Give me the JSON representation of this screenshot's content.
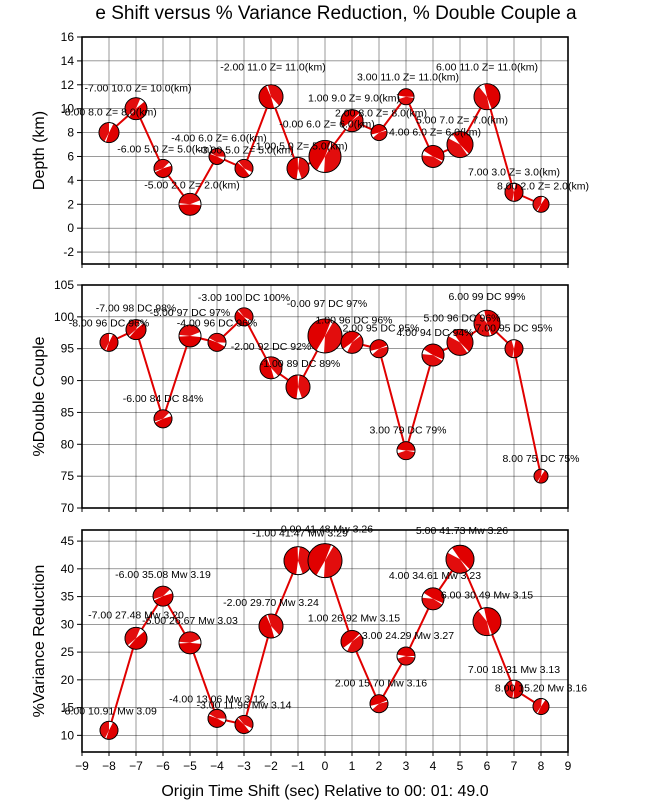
{
  "chart_data": [
    {
      "type": "line",
      "title": "e Shift versus % Variance Reduction, % Double Couple a",
      "xlabel": "",
      "ylabel": "Depth (km)",
      "xlim": [
        -9,
        9
      ],
      "ylim": [
        -3,
        16
      ],
      "yticks": [
        -2,
        0,
        2,
        4,
        6,
        8,
        10,
        12,
        14,
        16
      ],
      "grid": true,
      "x": [
        -8,
        -7,
        -6,
        -5,
        -4,
        -3,
        -2,
        -1,
        0,
        1,
        2,
        3,
        4,
        5,
        6,
        7,
        8
      ],
      "y": [
        8,
        10,
        5,
        2,
        6,
        5,
        11,
        5,
        6,
        9,
        8,
        11,
        6,
        7,
        11,
        3,
        2
      ],
      "labels": [
        "-8.00 8.0 Z= 8.0(km)",
        "-7.00 10.0 Z= 10.0(km)",
        "-6.00 5.0 Z= 5.0(km)",
        "-5.00 2.0 Z= 2.0(km)",
        "-4.00 6.0 Z= 6.0(km)",
        "-3.00 5.0 Z= 5.0(km)",
        "-2.00 11.0 Z= 11.0(km)",
        "-1.00 5.0 Z= 5.0(km)",
        "-0.00 6.0 Z= 6.0(km)",
        "1.00 9.0 Z= 9.0(km)",
        "2.00 8.0 Z= 8.0(km)",
        "3.00 11.0 Z= 11.0(km)",
        "4.00 6.0 Z= 6.0(km)",
        "5.00 7.0 Z= 7.0(km)",
        "6.00 11.0 Z= 11.0(km)",
        "7.00 3.0 Z= 3.0(km)",
        "8.00 2.0 Z= 2.0(km)"
      ]
    },
    {
      "type": "line",
      "title": "",
      "xlabel": "",
      "ylabel": "%Double Couple",
      "xlim": [
        -9,
        9
      ],
      "ylim": [
        70,
        105
      ],
      "yticks": [
        70,
        75,
        80,
        85,
        90,
        95,
        100,
        105
      ],
      "grid": true,
      "x": [
        -8,
        -7,
        -6,
        -5,
        -4,
        -3,
        -2,
        -1,
        0,
        1,
        2,
        3,
        4,
        5,
        6,
        7,
        8
      ],
      "y": [
        96,
        98,
        84,
        97,
        96,
        100,
        92,
        89,
        97,
        96,
        95,
        79,
        94,
        96,
        99,
        95,
        75
      ],
      "labels": [
        "-8.00 96 DC 96%",
        "-7.00 98 DC 98%",
        "-6.00 84 DC 84%",
        "-5.00 97 DC 97%",
        "-4.00 96 DC 96%",
        "-3.00 100 DC 100%",
        "-2.00 92 DC 92%",
        "-1.00 89 DC 89%",
        "-0.00 97 DC 97%",
        "1.00 96 DC 96%",
        "2.00 95 DC 95%",
        "3.00 79 DC 79%",
        "4.00 94 DC 94%",
        "5.00 96 DC 96%",
        "6.00 99 DC 99%",
        "7.00 95 DC 95%",
        "8.00 75 DC 75%"
      ]
    },
    {
      "type": "line",
      "title": "",
      "xlabel": "Origin Time Shift (sec) Relative to 00: 01: 49.0",
      "ylabel": "%Variance Reduction",
      "xlim": [
        -9,
        9
      ],
      "ylim": [
        7,
        47
      ],
      "xticks": [
        -9,
        -8,
        -7,
        -6,
        -5,
        -4,
        -3,
        -2,
        -1,
        0,
        1,
        2,
        3,
        4,
        5,
        6,
        7,
        8,
        9
      ],
      "yticks": [
        10,
        15,
        20,
        25,
        30,
        35,
        40,
        45
      ],
      "grid": true,
      "x": [
        -8,
        -7,
        -6,
        -5,
        -4,
        -3,
        -2,
        -1,
        0,
        1,
        2,
        3,
        4,
        5,
        6,
        7,
        8
      ],
      "y": [
        10.91,
        27.48,
        35.08,
        26.67,
        13.06,
        11.96,
        29.7,
        41.47,
        41.48,
        26.92,
        15.7,
        24.29,
        34.61,
        41.73,
        30.49,
        18.31,
        15.2
      ],
      "labels": [
        "-8.00 10.91 Mw 3.09",
        "-7.00 27.48 Mw 3.20",
        "-6.00 35.08 Mw 3.19",
        "-5.00 26.67 Mw 3.03",
        "-4.00 13.06 Mw 3.12",
        "-3.00 11.96 Mw 3.14",
        "-2.00 29.70 Mw 3.24",
        "-1.00 41.47 Mw 3.29",
        "0.00 41.48 Mw 3.26",
        "1.00 26.92 Mw 3.15",
        "2.00 15.70 Mw 3.16",
        "3.00 24.29 Mw 3.27",
        "4.00 34.61 Mw 3.23",
        "5.00 41.73 Mw 3.26",
        "6.00 30.49 Mw 3.15",
        "7.00 18.31 Mw 3.13",
        "8.00 15.20 Mw 3.16"
      ]
    }
  ],
  "colors": {
    "line": "#e00000",
    "beachball_fill": "#e00000",
    "beachball_bg": "#ffffff",
    "grid": "#000000"
  }
}
